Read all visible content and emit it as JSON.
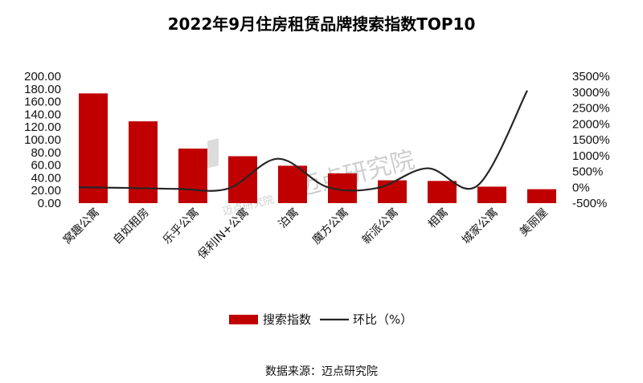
{
  "chart_data": {
    "type": "bar",
    "title": "2022年9月住房租赁品牌搜索指数TOP10",
    "categories": [
      "窝趣公寓",
      "自如租房",
      "乐乎公寓",
      "保利IN+公寓",
      "泊寓",
      "魔方公寓",
      "新派公寓",
      "相寓",
      "城家公寓",
      "美丽屋"
    ],
    "series": [
      {
        "name": "搜索指数",
        "axis": "left",
        "type": "bar",
        "color": "#C00000",
        "values": [
          173,
          129,
          86,
          74,
          59,
          47,
          36,
          35,
          26,
          22
        ]
      },
      {
        "name": "环比（%）",
        "axis": "right",
        "type": "line",
        "color": "#262626",
        "values": [
          0,
          -20,
          -50,
          -40,
          900,
          0,
          -20,
          600,
          50,
          3050
        ]
      }
    ],
    "y_left": {
      "min": 0,
      "max": 200,
      "step": 20,
      "ticks": [
        "0.00",
        "20.00",
        "40.00",
        "60.00",
        "80.00",
        "100.00",
        "120.00",
        "140.00",
        "160.00",
        "180.00",
        "200.00"
      ]
    },
    "y_right": {
      "min": -500,
      "max": 3500,
      "step": 500,
      "ticks": [
        "-500%",
        "0%",
        "500%",
        "1000%",
        "1500%",
        "2000%",
        "2500%",
        "3000%",
        "3500%"
      ]
    },
    "legend": {
      "position": "bottom",
      "items": [
        "搜索指数",
        "环比（%）"
      ]
    },
    "grid": false
  },
  "watermark": {
    "text": "迈点研究院",
    "sub_text": "迈点研究院"
  },
  "source": "数据来源：迈点研究院"
}
